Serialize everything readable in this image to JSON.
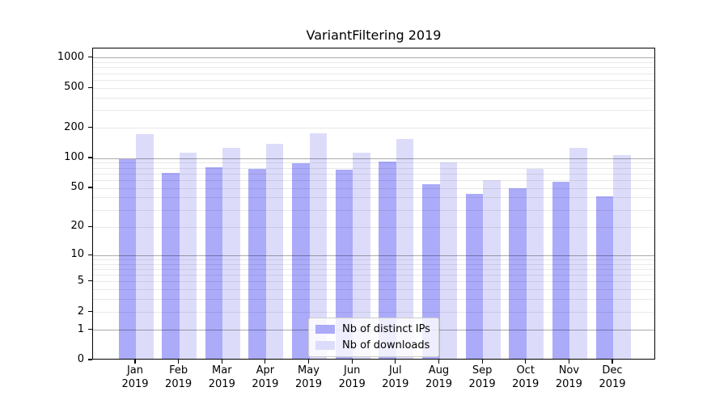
{
  "chart_data": {
    "type": "bar",
    "title": "VariantFiltering 2019",
    "categories": [
      "Jan 2019",
      "Feb 2019",
      "Mar 2019",
      "Apr 2019",
      "May 2019",
      "Jun 2019",
      "Jul 2019",
      "Aug 2019",
      "Sep 2019",
      "Oct 2019",
      "Nov 2019",
      "Dec 2019"
    ],
    "series": [
      {
        "name": "Nb of distinct IPs",
        "color": "#ababfa",
        "values": [
          95,
          69,
          79,
          76,
          86,
          74,
          90,
          53,
          42,
          48,
          56,
          40
        ]
      },
      {
        "name": "Nb of downloads",
        "color": "#dcdcfa",
        "values": [
          167,
          110,
          122,
          135,
          171,
          109,
          150,
          88,
          58,
          75,
          124,
          104
        ]
      }
    ],
    "xlabel": "",
    "ylabel": "",
    "y_scale": "log1p",
    "y_ticks": [
      0,
      1,
      2,
      5,
      10,
      20,
      50,
      100,
      200,
      500,
      1000
    ],
    "ylim": [
      0,
      1243
    ],
    "grid": true,
    "legend_position": "lower center"
  }
}
